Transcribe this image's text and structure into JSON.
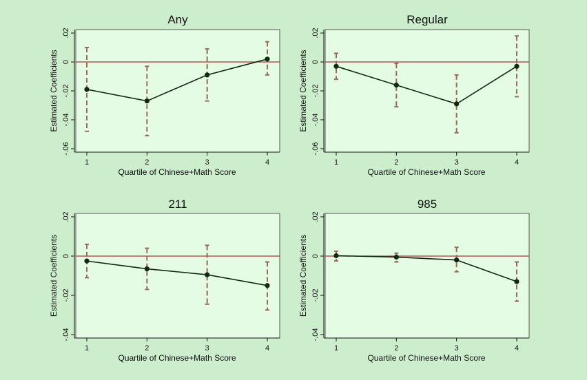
{
  "chart_data": [
    {
      "type": "line",
      "title": "Any",
      "xlabel": "Quartile of Chinese+Math Score",
      "ylabel": "Estimated Coefficients",
      "x": [
        1,
        2,
        3,
        4
      ],
      "values": [
        -0.019,
        -0.027,
        -0.009,
        0.002
      ],
      "ci_lower": [
        -0.048,
        -0.051,
        -0.027,
        -0.009
      ],
      "ci_upper": [
        0.01,
        -0.003,
        0.009,
        0.014
      ],
      "ylim": [
        -0.06,
        0.02
      ],
      "yticks": [
        -0.06,
        -0.04,
        -0.02,
        0,
        0.02
      ],
      "ytick_labels": [
        "-.06",
        "-.04",
        "-.02",
        "0",
        ".02"
      ],
      "xticks": [
        "1",
        "2",
        "3",
        "4"
      ],
      "reference_line": 0
    },
    {
      "type": "line",
      "title": "Regular",
      "xlabel": "Quartile of Chinese+Math Score",
      "ylabel": "Estimated Coefficients",
      "x": [
        1,
        2,
        3,
        4
      ],
      "values": [
        -0.003,
        -0.016,
        -0.029,
        -0.003
      ],
      "ci_lower": [
        -0.012,
        -0.031,
        -0.049,
        -0.024
      ],
      "ci_upper": [
        0.006,
        -0.001,
        -0.009,
        0.018
      ],
      "ylim": [
        -0.06,
        0.02
      ],
      "yticks": [
        -0.06,
        -0.04,
        -0.02,
        0,
        0.02
      ],
      "ytick_labels": [
        "-.06",
        "-.04",
        "-.02",
        "0",
        ".02"
      ],
      "xticks": [
        "1",
        "2",
        "3",
        "4"
      ],
      "reference_line": 0
    },
    {
      "type": "line",
      "title": "211",
      "xlabel": "Quartile of Chinese+Math Score",
      "ylabel": "Estimated Coefficients",
      "x": [
        1,
        2,
        3,
        4
      ],
      "values": [
        -0.0025,
        -0.0065,
        -0.0095,
        -0.015
      ],
      "ci_lower": [
        -0.011,
        -0.017,
        -0.0245,
        -0.0275
      ],
      "ci_upper": [
        0.006,
        0.004,
        0.0055,
        -0.003
      ],
      "ylim": [
        -0.04,
        0.02
      ],
      "yticks": [
        -0.04,
        -0.02,
        0,
        0.02
      ],
      "ytick_labels": [
        "-.04",
        "-.02",
        "0",
        ".02"
      ],
      "xticks": [
        "1",
        "2",
        "3",
        "4"
      ],
      "reference_line": 0
    },
    {
      "type": "line",
      "title": "985",
      "xlabel": "Quartile of Chinese+Math Score",
      "ylabel": "Estimated Coefficients",
      "x": [
        1,
        2,
        3,
        4
      ],
      "values": [
        0.0002,
        -0.0005,
        -0.002,
        -0.013
      ],
      "ci_lower": [
        -0.0025,
        -0.003,
        -0.008,
        -0.023
      ],
      "ci_upper": [
        0.0025,
        0.0015,
        0.0045,
        -0.003
      ],
      "ylim": [
        -0.04,
        0.02
      ],
      "yticks": [
        -0.04,
        -0.02,
        0,
        0.02
      ],
      "ytick_labels": [
        "-.04",
        "-.02",
        "0",
        ".02"
      ],
      "xticks": [
        "1",
        "2",
        "3",
        "4"
      ],
      "reference_line": 0
    }
  ]
}
